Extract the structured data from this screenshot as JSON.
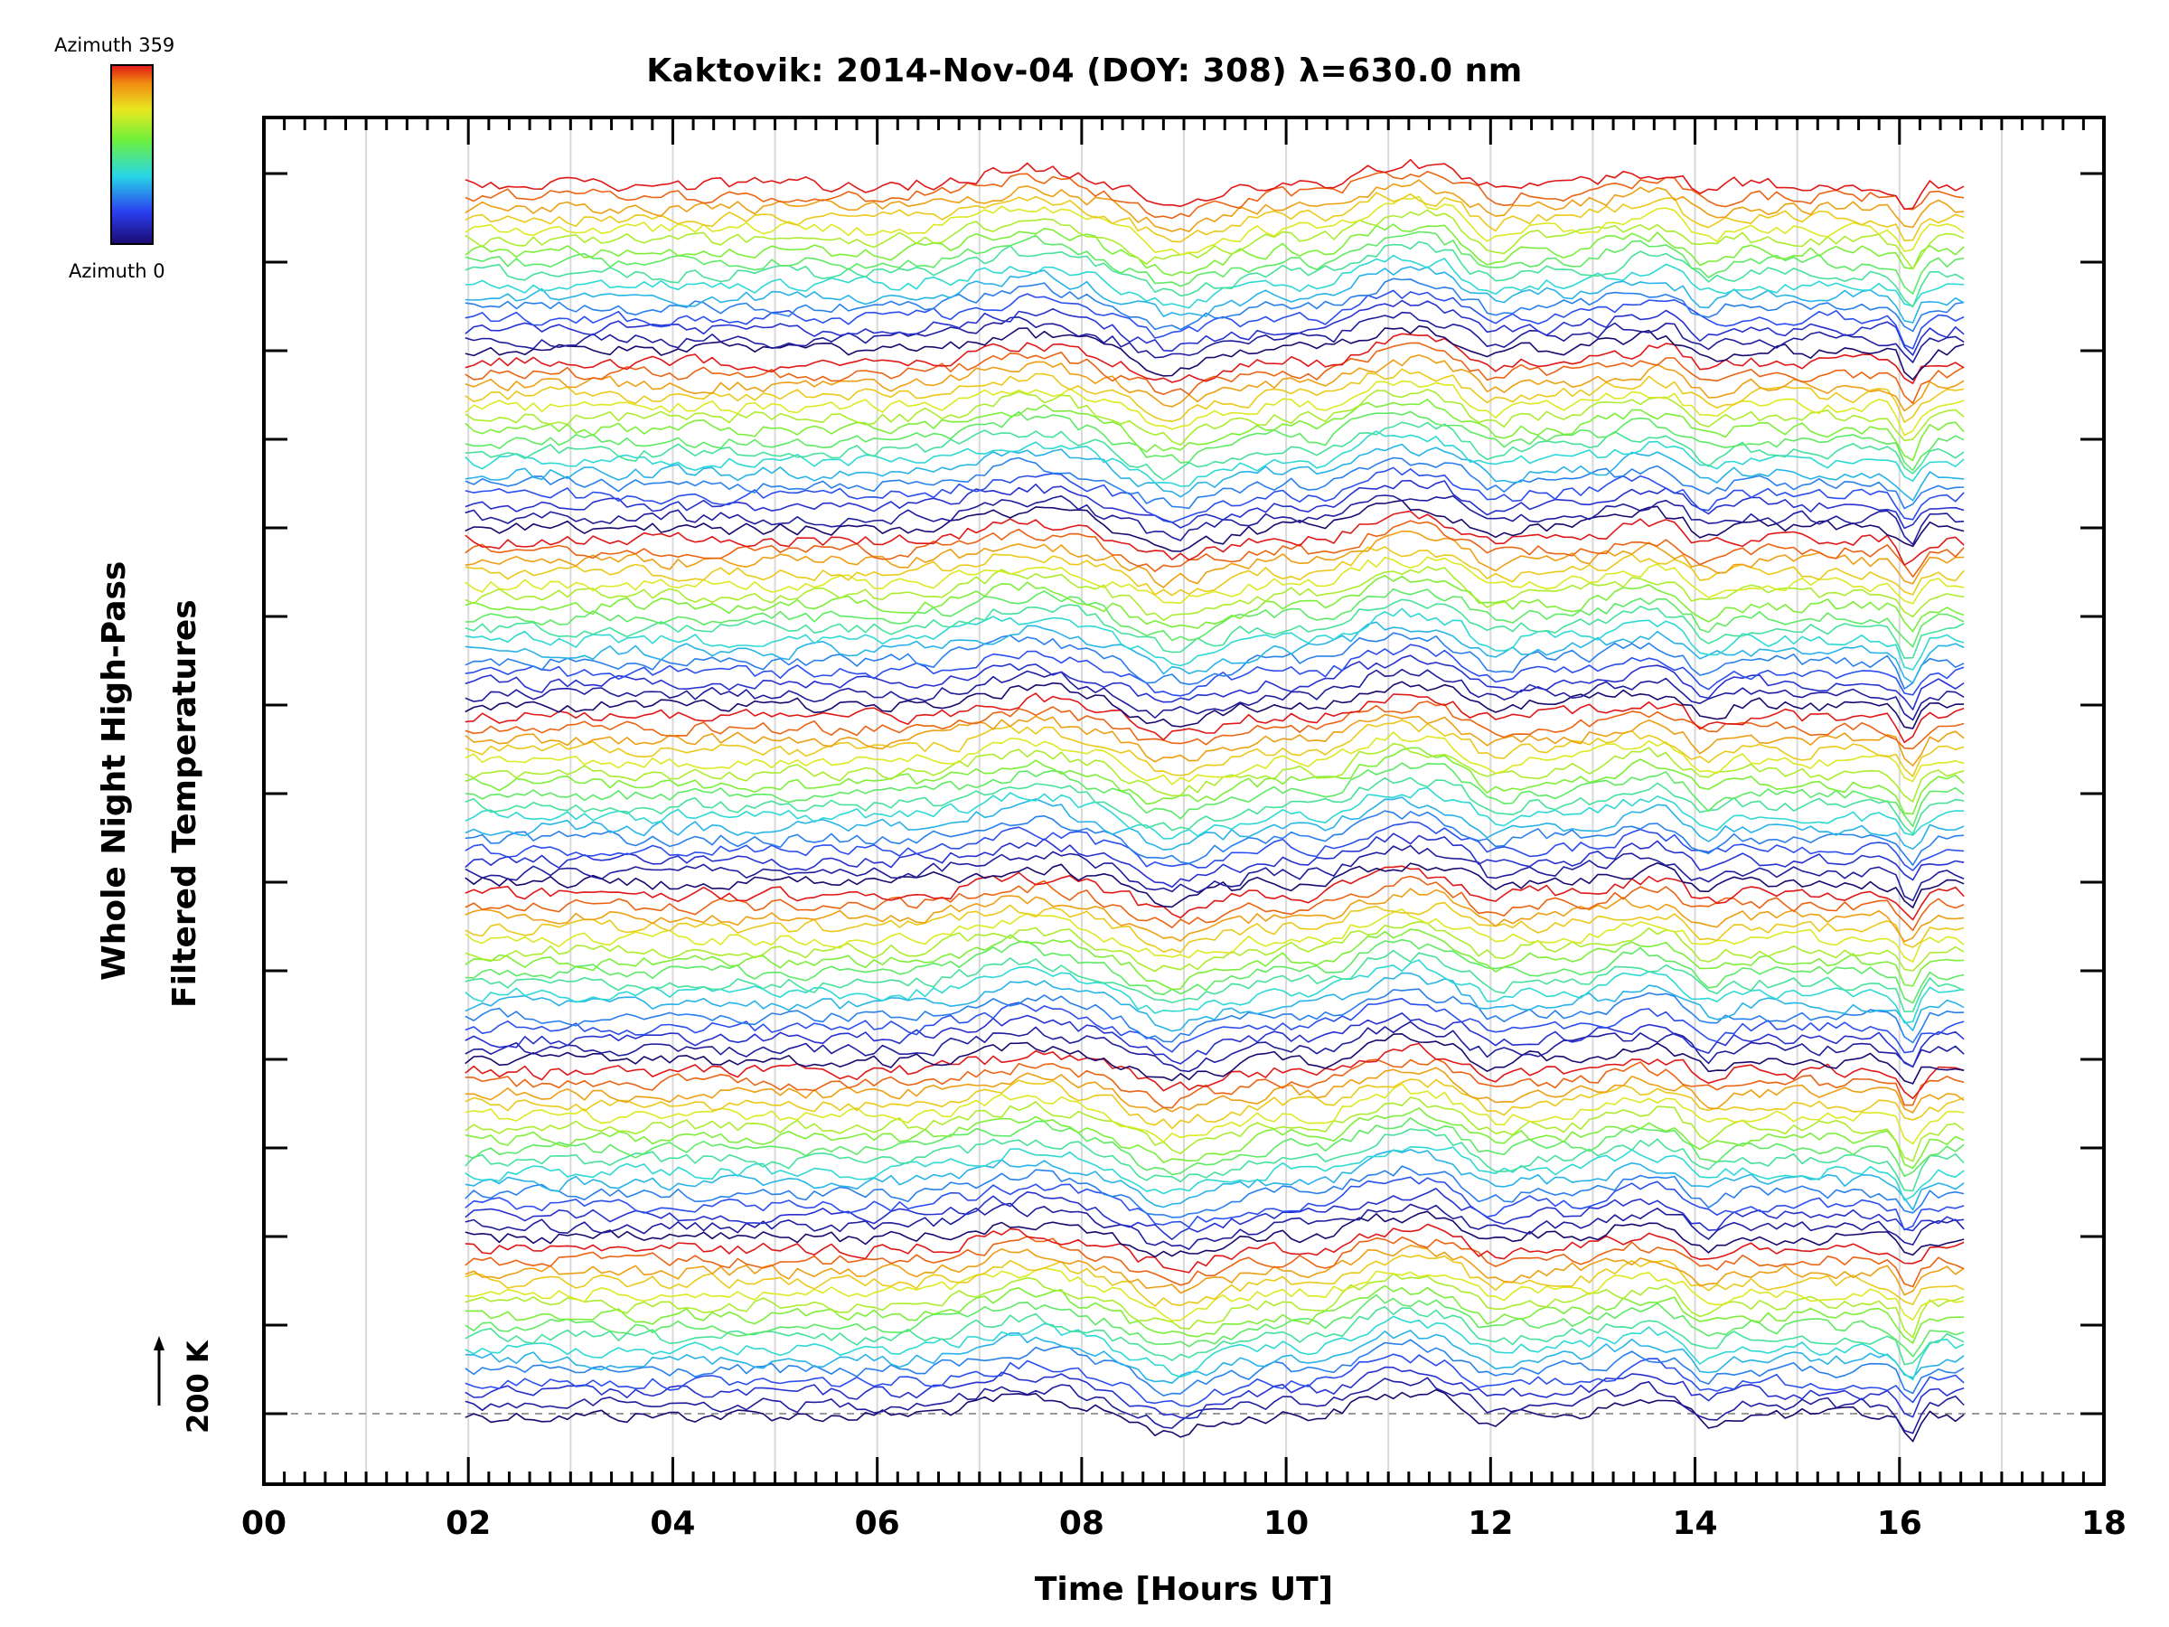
{
  "chart_data": {
    "type": "line",
    "title": "Kaktovik: 2014-Nov-04 (DOY: 308) λ=630.0 nm",
    "xlabel": "Time [Hours UT]",
    "ylabel_line1": "Whole Night High-Pass",
    "ylabel_line2": "Filtered Temperatures",
    "xlim": [
      0,
      18
    ],
    "x_ticks": [
      "00",
      "02",
      "04",
      "06",
      "08",
      "10",
      "12",
      "14",
      "16",
      "18"
    ],
    "x_minor_step_hours": 0.2,
    "data_start_hour": 1.97,
    "data_end_hour": 16.65,
    "num_traces": 112,
    "trace_groups": 7,
    "traces_per_group": 16,
    "scale_bar_label": "200 K",
    "baseline_label": "200 K",
    "colorbar": {
      "top_label": "Azimuth  359",
      "bottom_label": "Azimuth  0",
      "colormap": "rainbow (blue → cyan → green → yellow → red)",
      "min_azimuth": 0,
      "max_azimuth": 359
    },
    "colors": {
      "background": "#ffffff",
      "axis": "#000000",
      "gridlines": "#d9d9d9"
    }
  }
}
